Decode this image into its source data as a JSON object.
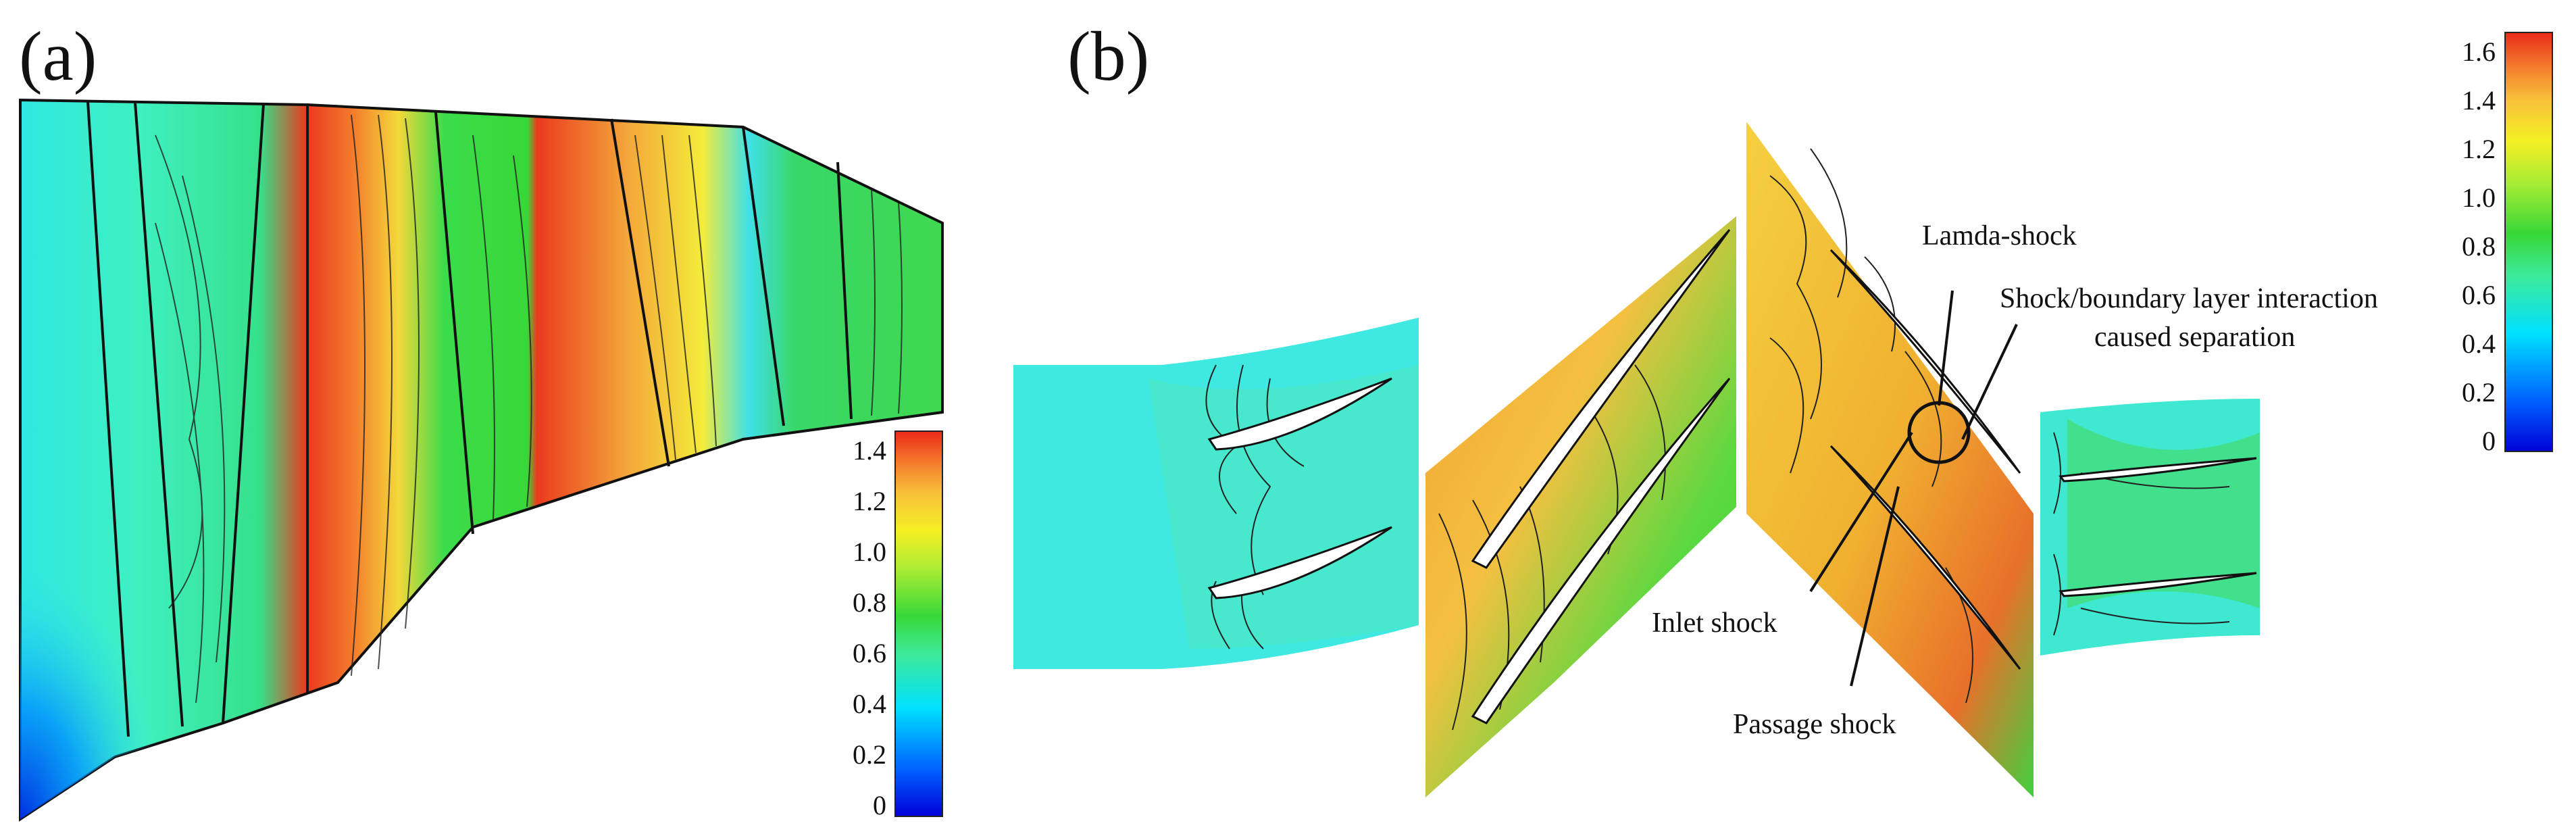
{
  "panel_a": {
    "label": "(a)",
    "colorbar": {
      "ticks": [
        "1.4",
        "1.2",
        "1.0",
        "0.8",
        "0.6",
        "0.4",
        "0.2",
        "0"
      ]
    }
  },
  "panel_b": {
    "label": "(b)",
    "colorbar": {
      "ticks": [
        "1.6",
        "1.4",
        "1.2",
        "1.0",
        "0.8",
        "0.6",
        "0.4",
        "0.2",
        "0"
      ]
    },
    "annotations": {
      "lamda_shock": "Lamda-shock",
      "shock_bl_line1": "Shock/boundary layer interaction",
      "shock_bl_line2": "caused separation",
      "inlet_shock": "Inlet shock",
      "passage_shock": "Passage shock"
    }
  },
  "colors": {
    "jet": [
      "#0000d8",
      "#0060ff",
      "#00e0ff",
      "#3dea9a",
      "#38d838",
      "#a8ec34",
      "#f4f024",
      "#f8c03a",
      "#f47a2c",
      "#ea2a1a"
    ]
  }
}
